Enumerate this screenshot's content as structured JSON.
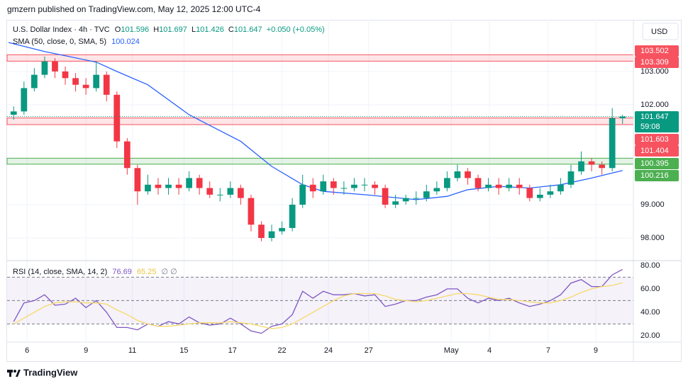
{
  "header": {
    "text": "gmzern published on TradingView.com, May 12, 2025 12:00 UTC-4"
  },
  "footer": {
    "brand": "TradingView"
  },
  "chart_data": [
    {
      "type": "candlestick",
      "title": "U.S. Dollar Index · 4h · TVC",
      "currency": "USD",
      "ohlc_letters": [
        "O",
        "H",
        "L",
        "C"
      ],
      "change_label": "+0.050 (+0.05%)",
      "countdown": "59:08",
      "up_color": "#089981",
      "down_color": "#f23645",
      "grid": true,
      "open": [
        101.7,
        101.8,
        102.5,
        102.9,
        103.3,
        103.0,
        102.8,
        102.6,
        102.5,
        102.9,
        102.3,
        100.9,
        100.1,
        99.4,
        99.6,
        99.5,
        99.6,
        99.5,
        99.8,
        99.5,
        99.3,
        99.3,
        99.5,
        99.2,
        98.4,
        98.0,
        98.2,
        98.3,
        99.0,
        99.6,
        99.4,
        99.7,
        99.5,
        99.5,
        99.6,
        99.6,
        99.5,
        99.0,
        99.1,
        99.2,
        99.2,
        99.4,
        99.5,
        99.8,
        100.0,
        99.8,
        99.5,
        99.6,
        99.5,
        99.6,
        99.5,
        99.2,
        99.3,
        99.4,
        99.6,
        100.0,
        100.3,
        100.2,
        100.1,
        101.596
      ],
      "high": [
        101.95,
        102.7,
        103.1,
        103.45,
        103.4,
        103.15,
        102.95,
        102.8,
        103.3,
        103.0,
        102.4,
        101.0,
        100.2,
        99.9,
        99.8,
        99.8,
        99.8,
        100.0,
        99.9,
        99.7,
        99.5,
        99.7,
        99.6,
        99.3,
        98.5,
        98.4,
        98.5,
        99.2,
        99.9,
        99.8,
        99.9,
        99.8,
        99.7,
        99.8,
        99.8,
        99.7,
        99.6,
        99.3,
        99.3,
        99.4,
        99.6,
        99.7,
        100.0,
        100.2,
        100.1,
        99.9,
        99.8,
        99.8,
        99.8,
        99.8,
        99.6,
        99.5,
        99.6,
        99.8,
        100.2,
        100.6,
        100.4,
        100.3,
        101.9,
        101.697
      ],
      "low": [
        101.55,
        101.7,
        102.4,
        102.8,
        102.8,
        102.6,
        102.4,
        102.3,
        102.4,
        102.1,
        100.7,
        99.9,
        99.0,
        99.3,
        99.3,
        99.3,
        99.3,
        99.4,
        99.3,
        99.2,
        99.1,
        99.2,
        99.0,
        98.2,
        97.9,
        97.9,
        98.1,
        98.2,
        98.9,
        99.2,
        99.3,
        99.3,
        99.3,
        99.4,
        99.4,
        99.3,
        98.9,
        98.9,
        99.0,
        99.0,
        99.1,
        99.3,
        99.4,
        99.7,
        99.6,
        99.4,
        99.4,
        99.3,
        99.4,
        99.3,
        99.1,
        99.1,
        99.2,
        99.3,
        99.5,
        99.9,
        100.0,
        99.9,
        100.0,
        101.426
      ],
      "close": [
        101.8,
        102.5,
        102.9,
        103.3,
        103.0,
        102.8,
        102.6,
        102.5,
        102.9,
        102.3,
        100.9,
        100.1,
        99.4,
        99.6,
        99.5,
        99.6,
        99.5,
        99.8,
        99.5,
        99.3,
        99.3,
        99.5,
        99.2,
        98.4,
        98.0,
        98.2,
        98.3,
        99.0,
        99.6,
        99.4,
        99.7,
        99.5,
        99.5,
        99.6,
        99.6,
        99.5,
        99.0,
        99.1,
        99.2,
        99.2,
        99.4,
        99.5,
        99.8,
        100.0,
        99.8,
        99.5,
        99.6,
        99.5,
        99.6,
        99.5,
        99.2,
        99.3,
        99.4,
        99.6,
        100.0,
        100.3,
        100.2,
        100.1,
        101.6,
        101.647
      ],
      "xlim": [
        -0.5,
        59.5
      ],
      "xticks": [
        {
          "value": 1.3,
          "label": "6"
        },
        {
          "value": 7.0,
          "label": "9"
        },
        {
          "value": 11.5,
          "label": "11"
        },
        {
          "value": 16.5,
          "label": "15"
        },
        {
          "value": 21.2,
          "label": "17"
        },
        {
          "value": 26.0,
          "label": "22"
        },
        {
          "value": 30.5,
          "label": "24"
        },
        {
          "value": 34.4,
          "label": "27"
        },
        {
          "value": 42.4,
          "label": "May"
        },
        {
          "value": 46.1,
          "label": "4"
        },
        {
          "value": 51.8,
          "label": "7"
        },
        {
          "value": 56.4,
          "label": "9"
        }
      ],
      "ylim": [
        97.32,
        104.55
      ],
      "yticks": [
        {
          "value": 98,
          "label": "98.000"
        },
        {
          "value": 99,
          "label": "99.000"
        },
        {
          "value": 102,
          "label": "102.000"
        },
        {
          "value": 103,
          "label": "103.000"
        }
      ],
      "overlays": [
        {
          "name": "SMA (50, close, 0, SMA, 5)",
          "color": "#2962ff",
          "x": [
            -0.5,
            3,
            8,
            10,
            13,
            17,
            19,
            22,
            25,
            28,
            30,
            34,
            39,
            42,
            44,
            47,
            50,
            53,
            56,
            59
          ],
          "values": [
            103.87,
            103.6,
            103.28,
            103.0,
            102.6,
            101.7,
            101.38,
            100.9,
            100.15,
            99.6,
            99.4,
            99.3,
            99.15,
            99.25,
            99.45,
            99.55,
            99.5,
            99.6,
            99.8,
            100.024
          ]
        }
      ],
      "zones": [
        {
          "low": 103.309,
          "high": 103.502,
          "color": "#f7525f"
        },
        {
          "low": 101.404,
          "high": 101.603,
          "color": "#f7525f"
        },
        {
          "low": 100.216,
          "high": 100.395,
          "color": "#4caf50"
        }
      ]
    },
    {
      "type": "line",
      "title": "RSI (14, close, SMA, 14, 2)",
      "legend_extra": "∅ ∅",
      "ylim": [
        14.5,
        84.2
      ],
      "yticks": [
        {
          "value": 20,
          "label": "20.00"
        },
        {
          "value": 40,
          "label": "40.00"
        },
        {
          "value": 60,
          "label": "60.00"
        },
        {
          "value": 80,
          "label": "80.00"
        }
      ],
      "hlines": [
        30,
        50,
        70
      ],
      "band_color": "#7e57c2",
      "series": [
        {
          "color": "#7e57c2",
          "values": [
            32,
            48,
            50,
            55,
            46,
            47,
            52,
            44,
            50,
            40,
            27,
            27,
            25,
            30,
            28,
            32,
            30,
            36,
            31,
            29,
            30,
            35,
            30,
            24,
            22,
            28,
            30,
            38,
            58,
            52,
            58,
            55,
            55,
            56,
            54,
            55,
            45,
            47,
            50,
            50,
            53,
            55,
            60,
            60,
            52,
            48,
            52,
            50,
            52,
            48,
            45,
            47,
            50,
            55,
            65,
            68,
            62,
            62,
            72,
            76.69
          ]
        },
        {
          "color": "#f7d96a",
          "values": [
            30,
            35,
            40,
            45,
            48,
            49,
            49,
            48,
            48,
            47,
            42,
            38,
            33,
            30,
            28,
            28,
            29,
            30,
            31,
            31,
            31,
            32,
            31,
            30,
            28,
            26,
            27,
            30,
            35,
            40,
            45,
            50,
            54,
            56,
            56,
            56,
            54,
            51,
            50,
            49,
            50,
            52,
            54,
            56,
            56,
            55,
            53,
            51,
            51,
            50,
            49,
            48,
            48,
            50,
            53,
            57,
            60,
            62,
            63,
            65.25
          ]
        }
      ]
    }
  ]
}
